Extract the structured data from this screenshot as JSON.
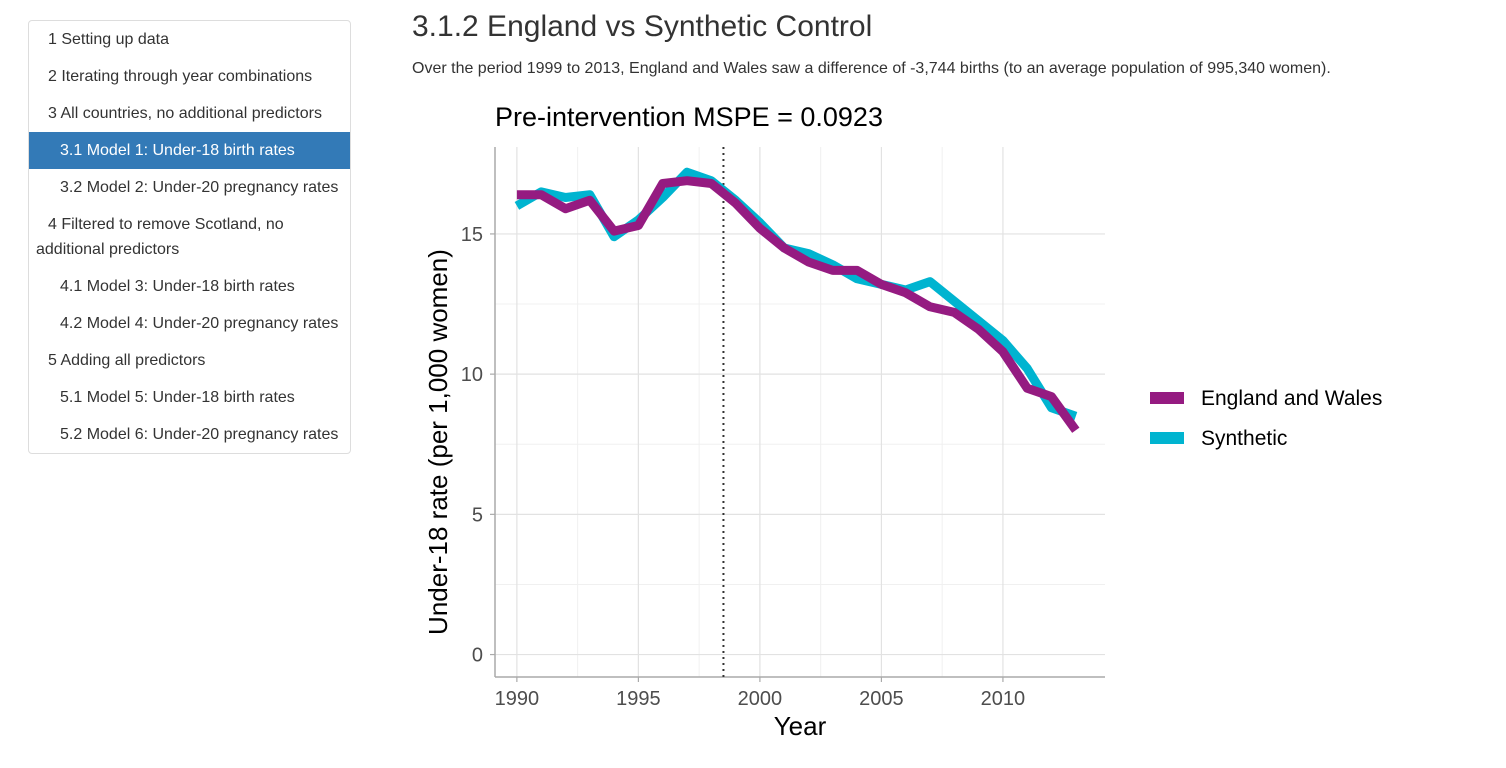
{
  "toc": {
    "items": [
      {
        "label": "1 Setting up data",
        "level": 1,
        "active": false
      },
      {
        "label": "2 Iterating through year combinations",
        "level": 1,
        "active": false
      },
      {
        "label": "3 All countries, no additional predictors",
        "level": 1,
        "active": false
      },
      {
        "label": "3.1 Model 1: Under-18 birth rates",
        "level": 2,
        "active": true
      },
      {
        "label": "3.2 Model 2: Under-20 pregnancy rates",
        "level": 2,
        "active": false
      },
      {
        "label": "4 Filtered to remove Scotland, no additional predictors",
        "level": 1,
        "active": false
      },
      {
        "label": "4.1 Model 3: Under-18 birth rates",
        "level": 2,
        "active": false
      },
      {
        "label": "4.2 Model 4: Under-20 pregnancy rates",
        "level": 2,
        "active": false
      },
      {
        "label": "5 Adding all predictors",
        "level": 1,
        "active": false
      },
      {
        "label": "5.1 Model 5: Under-18 birth rates",
        "level": 2,
        "active": false
      },
      {
        "label": "5.2 Model 6: Under-20 pregnancy rates",
        "level": 2,
        "active": false
      }
    ],
    "active_color": "#337ab7"
  },
  "main": {
    "title": "3.1.2 England vs Synthetic Control",
    "summary": "Over the period 1999 to 2013, England and Wales saw a difference of -3,744 births (to an average population of 995,340 women)."
  },
  "chart_data": {
    "type": "line",
    "title": "Pre-intervention MSPE = 0.0923",
    "xlabel": "Year",
    "ylabel": "Under-18 rate (per 1,000 women)",
    "xlim": [
      1989.1,
      2014.2
    ],
    "ylim": [
      -0.8,
      18.1
    ],
    "xticks": [
      1990,
      1995,
      2000,
      2005,
      2010
    ],
    "yticks": [
      0,
      5,
      10,
      15
    ],
    "grid": true,
    "intervention_line": 1998.5,
    "legend_position": "right",
    "x": [
      1990,
      1991,
      1992,
      1993,
      1994,
      1995,
      1996,
      1997,
      1998,
      1999,
      2000,
      2001,
      2002,
      2003,
      2004,
      2005,
      2006,
      2007,
      2008,
      2009,
      2010,
      2011,
      2012,
      2013
    ],
    "series": [
      {
        "name": "Synthetic",
        "color": "#00b4d0",
        "values": [
          16.0,
          16.5,
          16.3,
          16.4,
          14.9,
          15.5,
          16.3,
          17.2,
          16.9,
          16.2,
          15.4,
          14.5,
          14.3,
          13.9,
          13.4,
          13.2,
          13.0,
          13.3,
          12.6,
          11.9,
          11.2,
          10.2,
          8.8,
          8.5
        ]
      },
      {
        "name": "England and Wales",
        "color": "#951b81",
        "values": [
          16.4,
          16.4,
          15.9,
          16.2,
          15.1,
          15.3,
          16.8,
          16.9,
          16.8,
          16.1,
          15.2,
          14.5,
          14.0,
          13.7,
          13.7,
          13.2,
          12.9,
          12.4,
          12.2,
          11.6,
          10.8,
          9.5,
          9.2,
          8.0
        ]
      }
    ]
  }
}
